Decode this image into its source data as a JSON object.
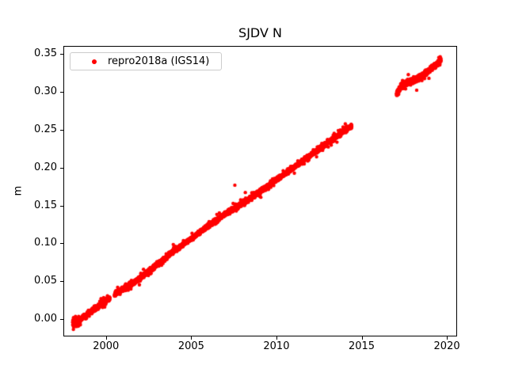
{
  "figure": {
    "background": "#ffffff",
    "text_color": "#000000"
  },
  "chart_data": {
    "type": "scatter",
    "title": "SJDV N",
    "xlabel": "",
    "ylabel": "m",
    "xlim": [
      1997.5,
      2020.6
    ],
    "ylim": [
      -0.0228,
      0.3605
    ],
    "grid": false,
    "xticks": [
      {
        "value": 2000,
        "label": "2000"
      },
      {
        "value": 2005,
        "label": "2005"
      },
      {
        "value": 2010,
        "label": "2010"
      },
      {
        "value": 2015,
        "label": "2015"
      },
      {
        "value": 2020,
        "label": "2020"
      }
    ],
    "yticks": [
      {
        "value": 0.0,
        "label": "0.00"
      },
      {
        "value": 0.05,
        "label": "0.05"
      },
      {
        "value": 0.1,
        "label": "0.10"
      },
      {
        "value": 0.15,
        "label": "0.15"
      },
      {
        "value": 0.2,
        "label": "0.20"
      },
      {
        "value": 0.25,
        "label": "0.25"
      },
      {
        "value": 0.3,
        "label": "0.30"
      },
      {
        "value": 0.35,
        "label": "0.35"
      }
    ],
    "legend": {
      "label": "repro2018a (IGS14)",
      "location": "upper left",
      "marker": "dot",
      "marker_color": "#ff0000",
      "border_color": "#cccccc"
    },
    "series": [
      {
        "name": "repro2018a (IGS14)",
        "color": "#ff0000",
        "marker": ".",
        "marker_radius_px": 2.2,
        "points_per_year": 365,
        "noise_sigma_m": 0.0012,
        "segments": [
          {
            "x_start": 1998.05,
            "x_end": 2014.42,
            "gaps": [
              [
                2000.22,
                2000.5
              ]
            ],
            "early_scatter": {
              "until": 1998.5,
              "bias": -0.002,
              "sigma": 0.0025
            },
            "anchors": [
              [
                1998.05,
                -0.0035
              ],
              [
                1998.3,
                -0.0015
              ],
              [
                1998.6,
                0.0015
              ],
              [
                1999.0,
                0.008
              ],
              [
                1999.5,
                0.016
              ],
              [
                1999.95,
                0.024
              ],
              [
                2000.22,
                0.0275
              ],
              [
                2000.5,
                0.032
              ],
              [
                2001.0,
                0.04
              ],
              [
                2001.3,
                0.0435
              ],
              [
                2002.0,
                0.054
              ],
              [
                2003.0,
                0.072
              ],
              [
                2004.0,
                0.0905
              ],
              [
                2005.0,
                0.106
              ],
              [
                2006.0,
                0.123
              ],
              [
                2007.0,
                0.139
              ],
              [
                2008.0,
                0.1525
              ],
              [
                2009.0,
                0.168
              ],
              [
                2010.0,
                0.184
              ],
              [
                2011.0,
                0.2
              ],
              [
                2012.0,
                0.2165
              ],
              [
                2013.0,
                0.2325
              ],
              [
                2014.0,
                0.249
              ],
              [
                2014.42,
                0.255
              ]
            ]
          },
          {
            "x_start": 2017.05,
            "x_end": 2019.65,
            "gaps": [],
            "noise_sigma_m": 0.0015,
            "anchors": [
              [
                2017.05,
                0.2965
              ],
              [
                2017.25,
                0.3045
              ],
              [
                2017.5,
                0.31
              ],
              [
                2017.75,
                0.3125
              ],
              [
                2018.0,
                0.3145
              ],
              [
                2018.3,
                0.3185
              ],
              [
                2018.6,
                0.322
              ],
              [
                2018.9,
                0.3275
              ],
              [
                2019.15,
                0.3325
              ],
              [
                2019.35,
                0.335
              ],
              [
                2019.5,
                0.3385
              ],
              [
                2019.65,
                0.342
              ]
            ]
          }
        ],
        "outliers": [
          [
            2003.95,
            0.0985
          ],
          [
            2007.56,
            0.1768
          ],
          [
            2018.23,
            0.3021
          ]
        ]
      }
    ]
  }
}
